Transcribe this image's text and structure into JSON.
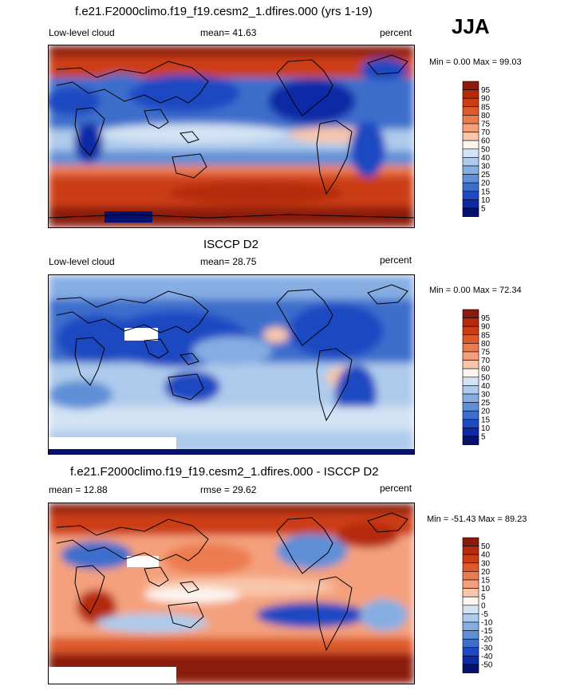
{
  "season": "JJA",
  "chart_data": [
    {
      "type": "heatmap",
      "title": "f.e21.F2000climo.f19_f19.cesm2_1.dfires.000 (yrs 1-19)",
      "variable_label": "Low-level cloud",
      "stat_text": "mean=  41.63",
      "units": "percent",
      "minmax_text": "Min =   0.00 Max =  99.03",
      "min": 0.0,
      "max": 99.03,
      "mean": 41.63,
      "colorbar_levels": [
        "95",
        "90",
        "85",
        "80",
        "75",
        "70",
        "60",
        "50",
        "40",
        "30",
        "25",
        "20",
        "15",
        "10",
        "5"
      ],
      "colorbar_colors": [
        "#8b1a0e",
        "#b52a0b",
        "#cc3d14",
        "#de5a2b",
        "#ec7c4f",
        "#f4a07c",
        "#f8c6ab",
        "#fdf4ef",
        "#d3e3f4",
        "#aecbec",
        "#86aee3",
        "#5f8fd7",
        "#3d6ecc",
        "#1f49c2",
        "#0c2aa6",
        "#06116e"
      ]
    },
    {
      "type": "heatmap",
      "title": "ISCCP D2",
      "variable_label": "Low-level cloud",
      "stat_text": "mean=  28.75",
      "units": "percent",
      "minmax_text": "Min =   0.00 Max =  72.34",
      "min": 0.0,
      "max": 72.34,
      "mean": 28.75,
      "colorbar_levels": [
        "95",
        "90",
        "85",
        "80",
        "75",
        "70",
        "60",
        "50",
        "40",
        "30",
        "25",
        "20",
        "15",
        "10",
        "5"
      ],
      "colorbar_colors": [
        "#8b1a0e",
        "#b52a0b",
        "#cc3d14",
        "#de5a2b",
        "#ec7c4f",
        "#f4a07c",
        "#f8c6ab",
        "#fdf4ef",
        "#d3e3f4",
        "#aecbec",
        "#86aee3",
        "#5f8fd7",
        "#3d6ecc",
        "#1f49c2",
        "#0c2aa6",
        "#06116e"
      ]
    },
    {
      "type": "heatmap",
      "title": "f.e21.F2000climo.f19_f19.cesm2_1.dfires.000 - ISCCP D2",
      "variable_label": "mean =  12.88",
      "stat_text": "rmse =  29.62",
      "units": "percent",
      "minmax_text": "Min = -51.43 Max =  89.23",
      "min": -51.43,
      "max": 89.23,
      "mean": 12.88,
      "rmse": 29.62,
      "colorbar_levels": [
        "50",
        "40",
        "30",
        "20",
        "15",
        "10",
        "5",
        "0",
        "-5",
        "-10",
        "-15",
        "-20",
        "-30",
        "-40",
        "-50"
      ],
      "colorbar_colors": [
        "#8b1a0e",
        "#b52a0b",
        "#cc3d14",
        "#de5a2b",
        "#ec7c4f",
        "#f4a07c",
        "#f8c6ab",
        "#fdf4ef",
        "#d3e3f4",
        "#aecbec",
        "#86aee3",
        "#5f8fd7",
        "#3d6ecc",
        "#1f49c2",
        "#0c2aa6",
        "#06116e"
      ]
    }
  ]
}
